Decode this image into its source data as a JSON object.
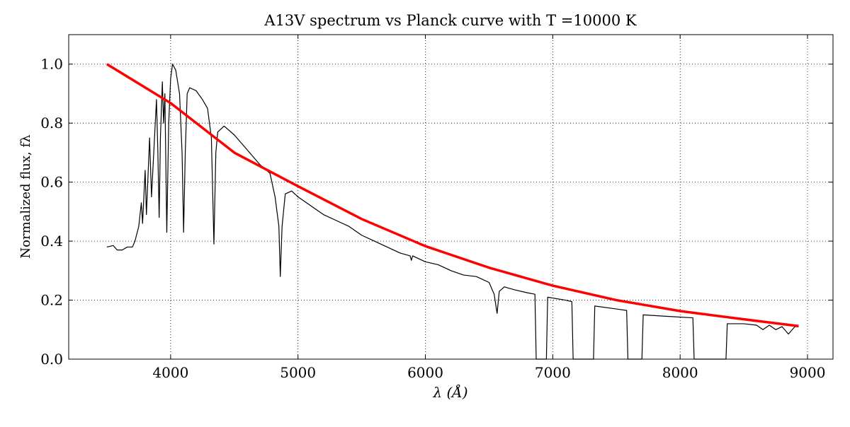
{
  "chart_data": {
    "type": "line",
    "title": "A13V spectrum vs Planck curve with T =10000 K",
    "x_label": "λ (Å)",
    "y_label": "Normalized flux,  fλ",
    "xlim": [
      3200,
      9200
    ],
    "xticks": [
      4000,
      5000,
      6000,
      7000,
      8000,
      9000
    ],
    "ylim": [
      0,
      1.1
    ],
    "yticks": [
      {
        "value": 0,
        "label": "0.0"
      },
      0.2,
      0.4,
      0.6,
      0.8,
      {
        "value": 1,
        "label": "1.0"
      }
    ],
    "grid": true,
    "series": [
      {
        "color": "#000000",
        "width": 1.2,
        "x": [
          3500,
          3550,
          3580,
          3620,
          3660,
          3700,
          3720,
          3750,
          3770,
          3780,
          3800,
          3810,
          3835,
          3850,
          3870,
          3889,
          3900,
          3910,
          3920,
          3935,
          3945,
          3955,
          3970,
          3985,
          4000,
          4015,
          4040,
          4070,
          4090,
          4102,
          4115,
          4130,
          4150,
          4200,
          4250,
          4290,
          4320,
          4340,
          4355,
          4370,
          4420,
          4500,
          4600,
          4700,
          4780,
          4820,
          4850,
          4861,
          4875,
          4900,
          4950,
          5000,
          5100,
          5200,
          5300,
          5400,
          5500,
          5600,
          5700,
          5800,
          5880,
          5890,
          5900,
          6000,
          6100,
          6200,
          6300,
          6400,
          6500,
          6540,
          6563,
          6580,
          6620,
          6700,
          6800,
          6860,
          6870,
          6950,
          6960,
          7100,
          7150,
          7160,
          7320,
          7330,
          7500,
          7580,
          7590,
          7700,
          7710,
          7900,
          8100,
          8110,
          8360,
          8370,
          8500,
          8600,
          8650,
          8700,
          8750,
          8800,
          8850,
          8900,
          8930
        ],
        "values": [
          0.38,
          0.385,
          0.37,
          0.37,
          0.38,
          0.38,
          0.4,
          0.45,
          0.53,
          0.46,
          0.64,
          0.49,
          0.75,
          0.55,
          0.72,
          0.88,
          0.7,
          0.48,
          0.75,
          0.94,
          0.8,
          0.9,
          0.43,
          0.8,
          0.95,
          1.0,
          0.98,
          0.9,
          0.7,
          0.43,
          0.7,
          0.9,
          0.92,
          0.91,
          0.88,
          0.85,
          0.75,
          0.39,
          0.7,
          0.77,
          0.79,
          0.76,
          0.71,
          0.66,
          0.63,
          0.55,
          0.45,
          0.28,
          0.45,
          0.56,
          0.57,
          0.55,
          0.52,
          0.49,
          0.47,
          0.45,
          0.42,
          0.4,
          0.38,
          0.36,
          0.35,
          0.335,
          0.35,
          0.33,
          0.32,
          0.3,
          0.285,
          0.28,
          0.26,
          0.22,
          0.155,
          0.23,
          0.245,
          0.235,
          0.225,
          0.22,
          0,
          0,
          0.21,
          0.2,
          0.195,
          0,
          0,
          0.18,
          0.17,
          0.165,
          0,
          0,
          0.15,
          0.145,
          0.14,
          0,
          0,
          0.12,
          0.12,
          0.115,
          0.1,
          0.115,
          0.1,
          0.11,
          0.085,
          0.11,
          0.11
        ]
      },
      {
        "color": "#ff0000",
        "width": 3.5,
        "x": [
          3500,
          4000,
          4500,
          5000,
          5500,
          6000,
          6500,
          7000,
          7500,
          8000,
          8500,
          8930
        ],
        "values": [
          1.0,
          0.868,
          0.7,
          0.586,
          0.475,
          0.383,
          0.31,
          0.249,
          0.2,
          0.163,
          0.135,
          0.112
        ]
      }
    ]
  }
}
